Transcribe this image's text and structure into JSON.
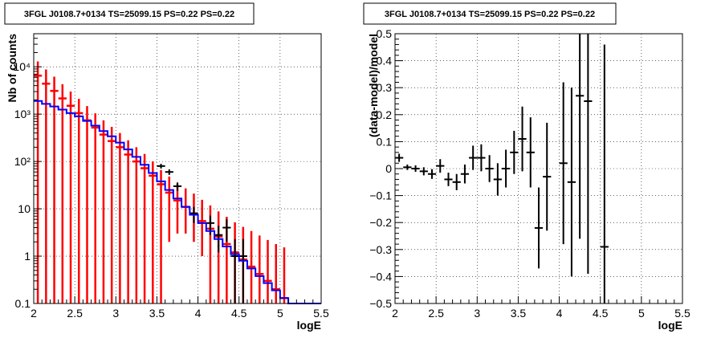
{
  "chart_data": [
    {
      "type": "step-histogram",
      "title": "3FGL J0108.7+0134 TS=25099.15 PS=0.22 PS=0.22",
      "xlabel": "logE",
      "ylabel": "Nb of counts",
      "xlim": [
        2,
        5.5
      ],
      "ylim": [
        0.1,
        50000
      ],
      "yscale": "log",
      "grid": true,
      "x_ticks": [
        "2",
        "2.5",
        "3",
        "3.5",
        "4",
        "4.5",
        "5",
        "5.5"
      ],
      "y_ticks": [
        "0.1",
        "1",
        "10",
        "10²",
        "10³",
        "10⁴"
      ],
      "bin_width": 0.1,
      "series": [
        {
          "color": "#0000ff",
          "kind": "step",
          "bins_low": [
            2.0,
            2.1,
            2.2,
            2.3,
            2.4,
            2.5,
            2.6,
            2.7,
            2.8,
            2.9,
            3.0,
            3.1,
            3.2,
            3.3,
            3.4,
            3.5,
            3.6,
            3.7,
            3.8,
            3.9,
            4.0,
            4.1,
            4.2,
            4.3,
            4.4,
            4.5,
            4.6,
            4.7,
            4.8,
            4.9,
            5.0,
            5.1,
            5.2,
            5.3,
            5.4
          ],
          "values": [
            1900,
            1650,
            1450,
            1250,
            1050,
            900,
            720,
            570,
            440,
            340,
            250,
            180,
            125,
            85,
            57,
            38,
            25,
            16.5,
            11,
            7.5,
            5,
            3.4,
            2.3,
            1.6,
            1.1,
            0.8,
            0.55,
            0.38,
            0.27,
            0.19,
            0.13,
            0.1,
            0.1,
            0.1,
            0.1
          ]
        },
        {
          "color": "#ff0000",
          "kind": "errorbar",
          "x": [
            2.05,
            2.15,
            2.25,
            2.35,
            2.45,
            2.55,
            2.65,
            2.75,
            2.85,
            2.95,
            3.05,
            3.15,
            3.25,
            3.35,
            3.45,
            3.55,
            3.65,
            3.75,
            3.85,
            3.95,
            4.05,
            4.15,
            4.25,
            4.35,
            4.45,
            4.55,
            4.65,
            4.75,
            4.85,
            4.95,
            5.05
          ],
          "y": [
            6500,
            4400,
            3100,
            2150,
            1500,
            1050,
            740,
            520,
            370,
            270,
            200,
            140,
            100,
            72,
            50,
            33,
            22,
            15,
            11,
            8,
            5.5,
            3.8,
            2.6,
            1.8,
            1.2,
            0.85,
            0.6,
            0.42,
            0.3,
            0.2,
            0.13
          ],
          "err_low": [
            6500,
            4400,
            3100,
            2150,
            1500,
            1050,
            740,
            520,
            370,
            270,
            200,
            140,
            100,
            72,
            50,
            33,
            20,
            12,
            8,
            6,
            4.5,
            3.7,
            2.6,
            1.8,
            1.2,
            0.85,
            0.6,
            0.42,
            0.3,
            0.2,
            0.13
          ],
          "err_high": [
            6500,
            4400,
            3100,
            2150,
            1500,
            1050,
            740,
            520,
            370,
            270,
            200,
            140,
            100,
            72,
            50,
            33,
            26,
            19,
            16,
            13,
            10,
            8,
            6.2,
            5,
            4,
            3.3,
            2.8,
            2.3,
            1.9,
            1.6,
            1.4
          ]
        },
        {
          "color": "#000000",
          "kind": "errorbar",
          "x": [
            3.55,
            3.65,
            3.75,
            3.95,
            4.15,
            4.25,
            4.35,
            4.45,
            4.55
          ],
          "y": [
            80,
            60,
            30,
            8,
            5,
            2.8,
            4,
            1,
            1
          ],
          "err_low": [
            9,
            8,
            6,
            3,
            2.2,
            1.6,
            2,
            0.9,
            0.9
          ],
          "err_high": [
            9,
            8,
            6,
            3,
            2.2,
            1.6,
            2,
            1.3,
            1.3
          ]
        }
      ]
    },
    {
      "type": "scatter-errorbar",
      "title": "3FGL J0108.7+0134 TS=25099.15 PS=0.22 PS=0.22",
      "xlabel": "logE",
      "ylabel": "(data-model)/model",
      "xlim": [
        2,
        5.5
      ],
      "ylim": [
        -0.5,
        0.5
      ],
      "grid": true,
      "x_ticks": [
        "2",
        "2.5",
        "3",
        "3.5",
        "4",
        "4.5",
        "5",
        "5.5"
      ],
      "y_ticks": [
        "−0.5",
        "−0.4",
        "−0.3",
        "−0.2",
        "−0.1",
        "0",
        "0.1",
        "0.2",
        "0.3",
        "0.4",
        "0.5"
      ],
      "series": [
        {
          "color": "#000000",
          "x": [
            2.05,
            2.15,
            2.25,
            2.35,
            2.45,
            2.55,
            2.65,
            2.75,
            2.85,
            2.95,
            3.05,
            3.15,
            3.25,
            3.35,
            3.45,
            3.55,
            3.65,
            3.75,
            3.85,
            4.05,
            4.15,
            4.25,
            4.35,
            4.55
          ],
          "y": [
            0.04,
            0.005,
            0.0,
            -0.01,
            -0.02,
            0.01,
            -0.04,
            -0.05,
            -0.02,
            0.04,
            0.04,
            0.0,
            -0.04,
            0.0,
            0.06,
            0.11,
            0.06,
            -0.22,
            -0.03,
            0.02,
            -0.05,
            0.27,
            0.25,
            -0.29
          ],
          "err": [
            0.015,
            0.01,
            0.012,
            0.015,
            0.018,
            0.025,
            0.025,
            0.03,
            0.035,
            0.045,
            0.05,
            0.05,
            0.06,
            0.07,
            0.08,
            0.12,
            0.13,
            0.15,
            0.2,
            0.3,
            0.35,
            0.53,
            0.64,
            0.75
          ]
        }
      ]
    }
  ]
}
